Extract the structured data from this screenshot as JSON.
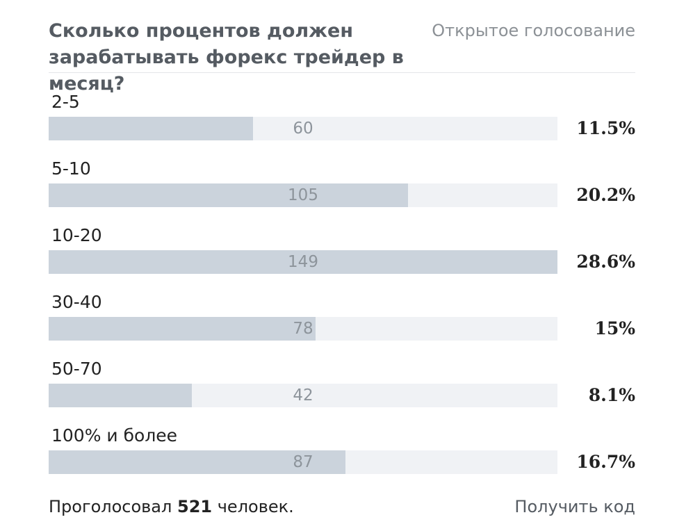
{
  "poll": {
    "question": "Сколько процентов должен зарабатывать форекс трейдер в месяц?",
    "type_label": "Открытое голосование",
    "options": [
      {
        "label": "2-5",
        "count": "60",
        "percent_label": "11.5%",
        "fill": 40.2
      },
      {
        "label": "5-10",
        "count": "105",
        "percent_label": "20.2%",
        "fill": 70.6
      },
      {
        "label": "10-20",
        "count": "149",
        "percent_label": "28.6%",
        "fill": 100
      },
      {
        "label": "30-40",
        "count": "78",
        "percent_label": "15%",
        "fill": 52.4
      },
      {
        "label": "50-70",
        "count": "42",
        "percent_label": "8.1%",
        "fill": 28.2
      },
      {
        "label": "100% и более",
        "count": "87",
        "percent_label": "16.7%",
        "fill": 58.4
      }
    ],
    "footer": {
      "voted_prefix": "Проголосовал",
      "voted_count": "521",
      "voted_suffix": "человек.",
      "get_code_label": "Получить код"
    }
  }
}
